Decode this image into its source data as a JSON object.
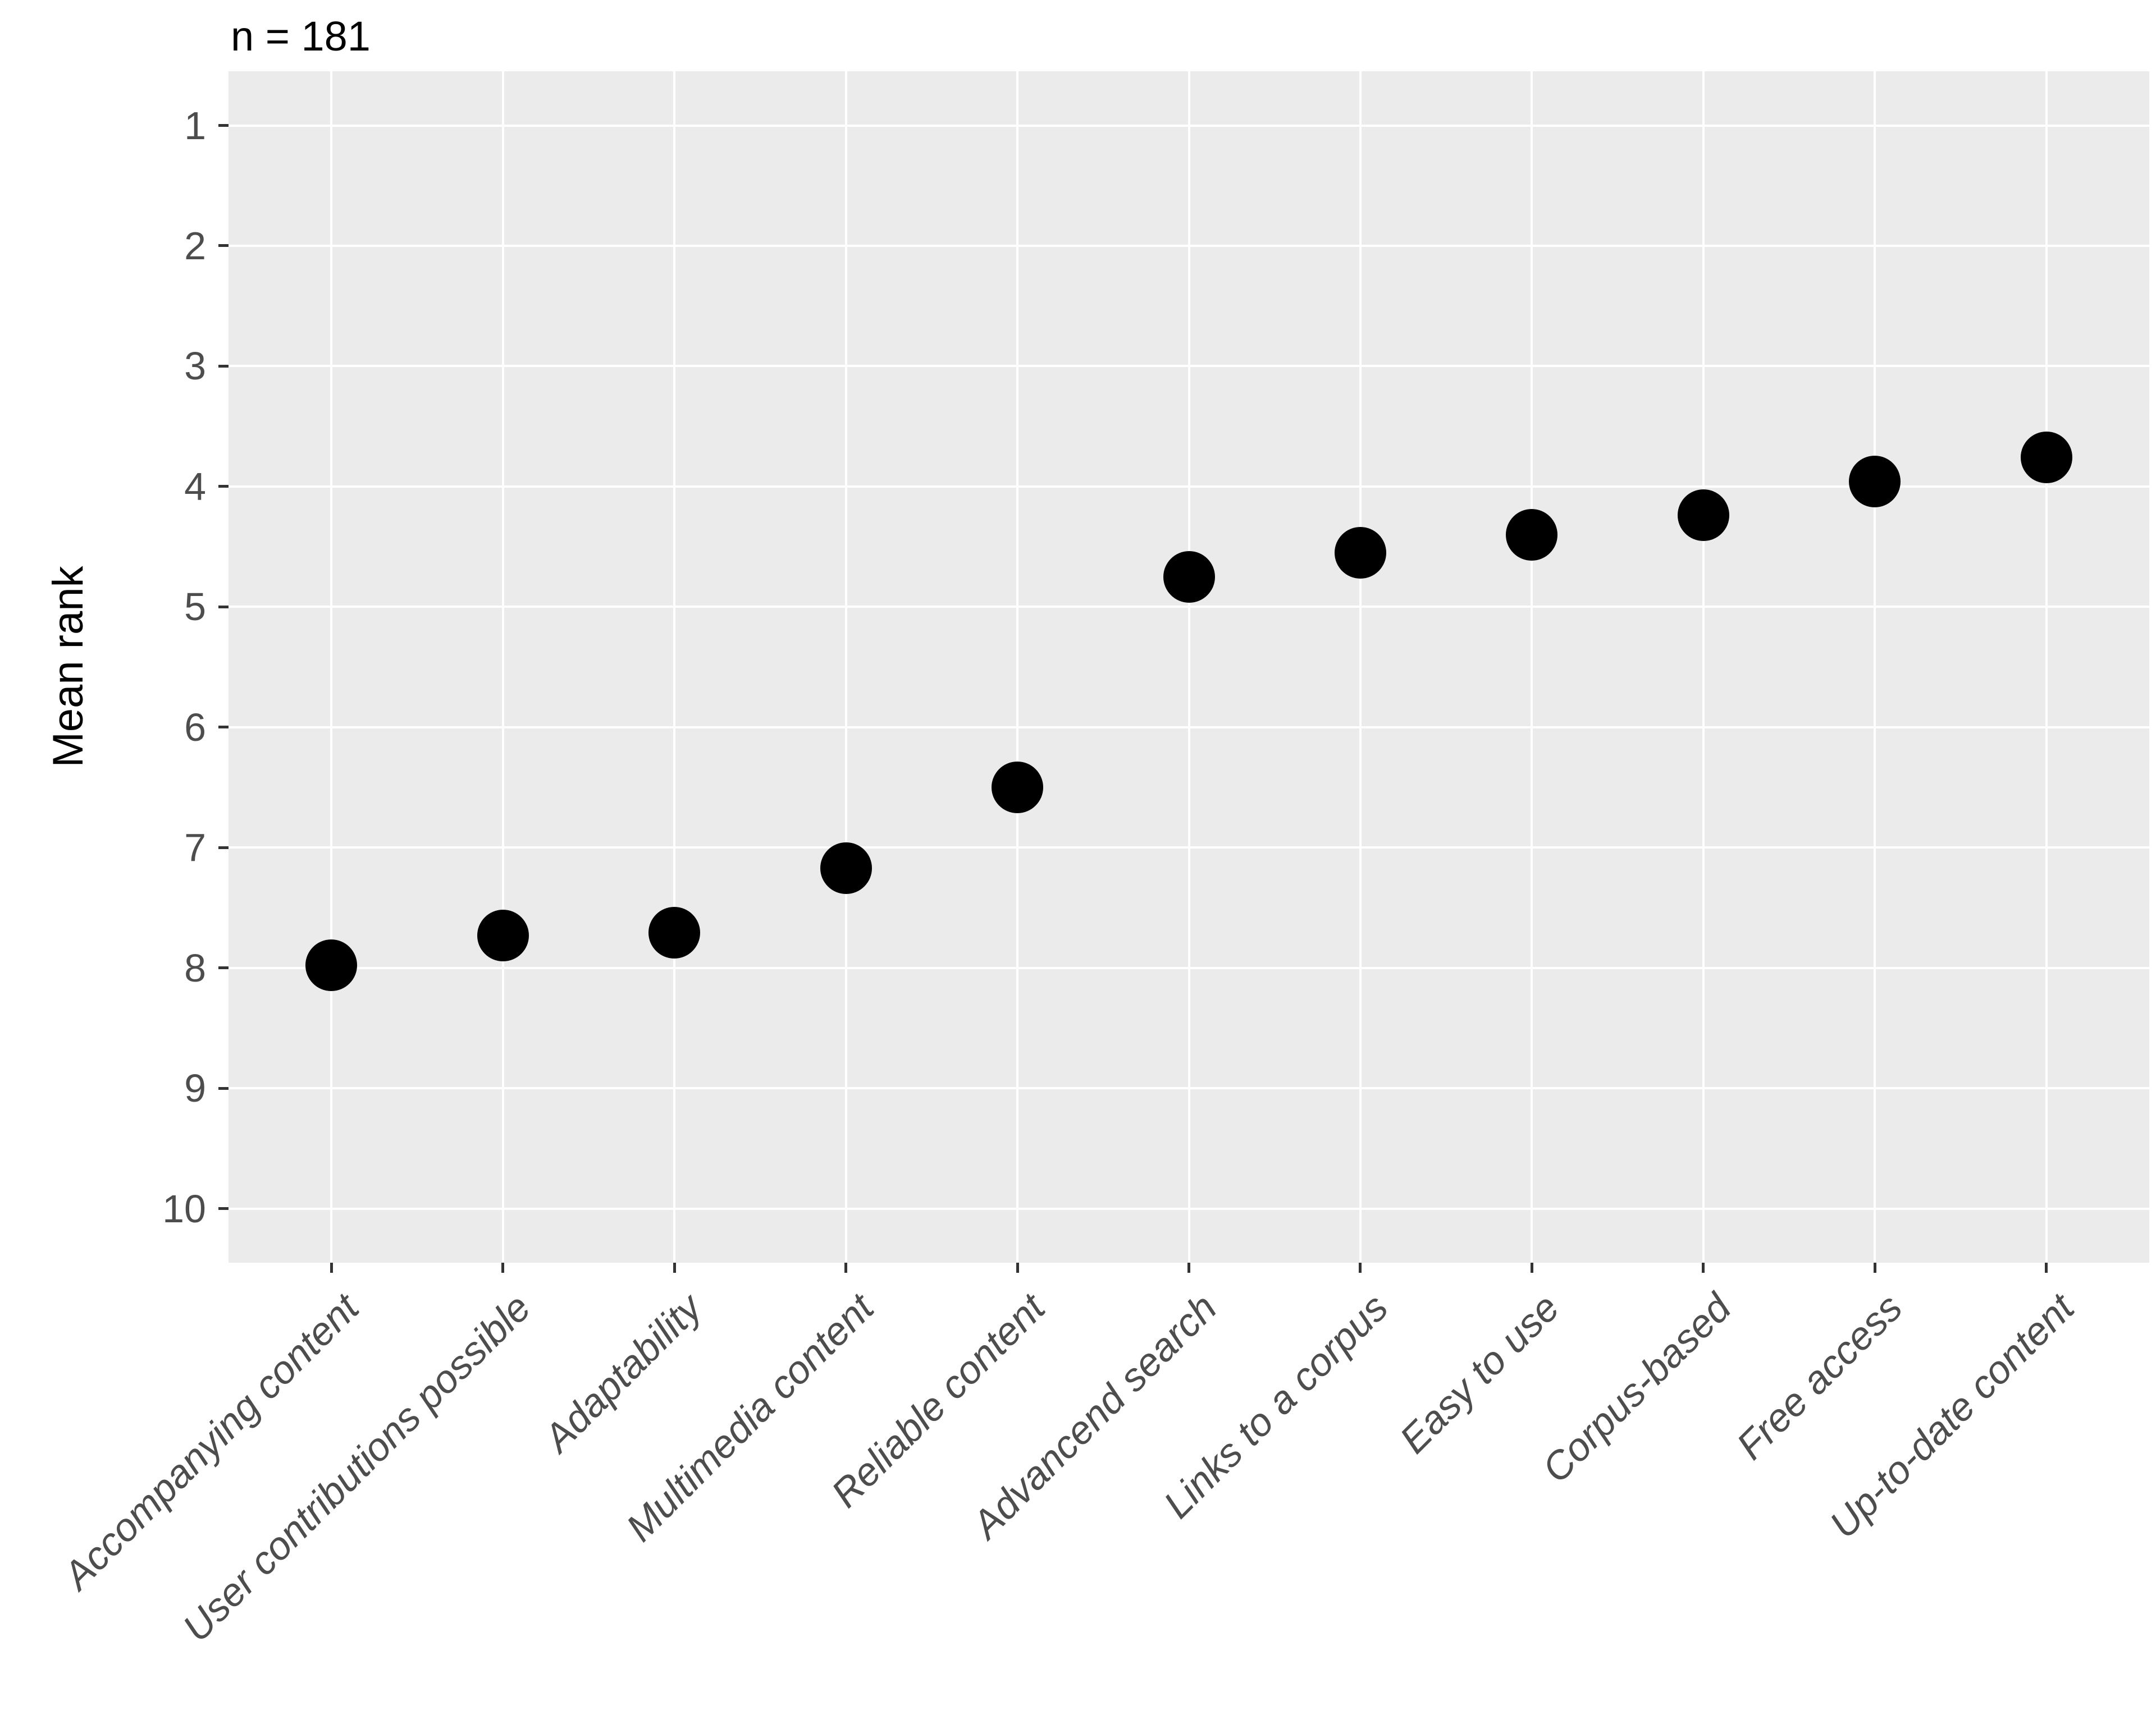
{
  "title": "n = 181",
  "y_axis": {
    "label": "Mean rank"
  },
  "chart_data": {
    "type": "scatter",
    "title": "n = 181",
    "xlabel": "",
    "ylabel": "Mean rank",
    "categories": [
      "Accompanying content",
      "User contributions possible",
      "Adaptability",
      "Multimedia content",
      "Reliable content",
      "Advancend search",
      "Links to a corpus",
      "Easy to use",
      "Corpus-based",
      "Free access",
      "Up-to-date content"
    ],
    "values": [
      7.98,
      7.73,
      7.71,
      7.17,
      6.5,
      4.75,
      4.55,
      4.4,
      4.24,
      3.96,
      3.76
    ],
    "y_ticks": [
      1,
      2,
      3,
      4,
      5,
      6,
      7,
      8,
      9,
      10
    ],
    "ylim": [
      0.55,
      10.45
    ],
    "y_axis_reversed": true,
    "grid": "major-only",
    "legend_position": "none",
    "point_color": "#000000",
    "panel_background": "#EBEBEB",
    "gridline_color": "#FFFFFF",
    "axis_text_color": "#4D4D4D",
    "tick_mark_color": "#333333",
    "x_label_style": "italic, rotated 45 degrees"
  }
}
